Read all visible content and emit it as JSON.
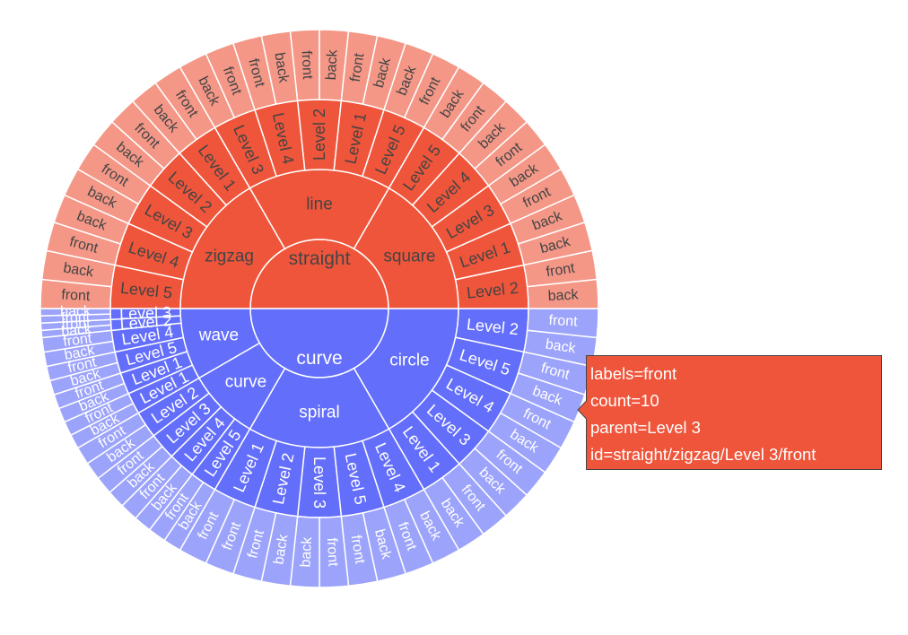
{
  "chart_data": {
    "type": "sunburst",
    "colors": {
      "curve": "#636efa",
      "straight": "#ef553b",
      "ring3_curve": "#9ca3fb",
      "ring3_straight": "#f49787",
      "separator": "#ffffff",
      "label_dark": "#444444",
      "label_light": "#ffffff"
    },
    "root": [
      {
        "label": "curve",
        "value": 15,
        "children": [
          {
            "label": "circle",
            "value": 5,
            "children": [
              {
                "label": "Level 2",
                "value": 1,
                "children": [
                  {
                    "label": "front",
                    "value": 0.5
                  },
                  {
                    "label": "back",
                    "value": 0.5
                  }
                ]
              },
              {
                "label": "Level 5",
                "value": 1,
                "children": [
                  {
                    "label": "front",
                    "value": 0.5
                  },
                  {
                    "label": "back",
                    "value": 0.5
                  }
                ]
              },
              {
                "label": "Level 4",
                "value": 1,
                "children": [
                  {
                    "label": "front",
                    "value": 0.5
                  },
                  {
                    "label": "back",
                    "value": 0.5
                  }
                ]
              },
              {
                "label": "Level 3",
                "value": 1,
                "children": [
                  {
                    "label": "front",
                    "value": 0.5
                  },
                  {
                    "label": "back",
                    "value": 0.5
                  }
                ]
              },
              {
                "label": "Level 1",
                "value": 1,
                "children": [
                  {
                    "label": "front",
                    "value": 0.5
                  },
                  {
                    "label": "back",
                    "value": 0.5
                  }
                ]
              }
            ]
          },
          {
            "label": "spiral",
            "value": 5,
            "children": [
              {
                "label": "Level 4",
                "value": 1,
                "children": [
                  {
                    "label": "back",
                    "value": 0.5
                  },
                  {
                    "label": "front",
                    "value": 0.5
                  }
                ]
              },
              {
                "label": "Level 5",
                "value": 1,
                "children": [
                  {
                    "label": "back",
                    "value": 0.5
                  },
                  {
                    "label": "front",
                    "value": 0.5
                  }
                ]
              },
              {
                "label": "Level 3",
                "value": 1,
                "children": [
                  {
                    "label": "front",
                    "value": 0.5
                  },
                  {
                    "label": "back",
                    "value": 0.5
                  }
                ]
              },
              {
                "label": "Level 2",
                "value": 1,
                "children": [
                  {
                    "label": "back",
                    "value": 0.5
                  },
                  {
                    "label": "front",
                    "value": 0.5
                  }
                ]
              },
              {
                "label": "Level 1",
                "value": 1,
                "children": [
                  {
                    "label": "front",
                    "value": 0.5
                  },
                  {
                    "label": "front",
                    "value": 0.5
                  }
                ]
              }
            ]
          },
          {
            "label": "curve",
            "value": 2.5,
            "children": [
              {
                "label": "Level 5",
                "value": 0.625,
                "children": [
                  {
                    "label": "back",
                    "value": 0.3125
                  },
                  {
                    "label": "front",
                    "value": 0.3125
                  }
                ]
              },
              {
                "label": "Level 4",
                "value": 0.625,
                "children": [
                  {
                    "label": "back",
                    "value": 0.3125
                  },
                  {
                    "label": "front",
                    "value": 0.3125
                  }
                ]
              },
              {
                "label": "Level 3",
                "value": 0.625,
                "children": [
                  {
                    "label": "back",
                    "value": 0.3125
                  },
                  {
                    "label": "front",
                    "value": 0.3125
                  }
                ]
              },
              {
                "label": "Level 2",
                "value": 0.625,
                "children": [
                  {
                    "label": "back",
                    "value": 0.3125
                  },
                  {
                    "label": "front",
                    "value": 0.3125
                  }
                ]
              }
            ]
          },
          {
            "label": "wave",
            "value": 2.5,
            "children": [
              {
                "label": "Level 1",
                "value": 0.5,
                "children": [
                  {
                    "label": "back",
                    "value": 0.25
                  },
                  {
                    "label": "front",
                    "value": 0.25
                  }
                ]
              },
              {
                "label": "Level 1",
                "value": 0.5,
                "children": [
                  {
                    "label": "back",
                    "value": 0.25
                  },
                  {
                    "label": "front",
                    "value": 0.25
                  }
                ]
              },
              {
                "label": "Level 5",
                "value": 0.5,
                "children": [
                  {
                    "label": "back",
                    "value": 0.25
                  },
                  {
                    "label": "front",
                    "value": 0.25
                  }
                ]
              },
              {
                "label": "Level 4",
                "value": 0.5,
                "children": [
                  {
                    "label": "back",
                    "value": 0.25
                  },
                  {
                    "label": "front",
                    "value": 0.25
                  }
                ]
              },
              {
                "label": "Level 2",
                "value": 0.25,
                "children": [
                  {
                    "label": "back",
                    "value": 0.125
                  },
                  {
                    "label": "front",
                    "value": 0.125
                  }
                ]
              },
              {
                "label": "Level 3",
                "value": 0.25,
                "children": [
                  {
                    "label": "front",
                    "value": 0.125
                  },
                  {
                    "label": "back",
                    "value": 0.125
                  }
                ]
              }
            ]
          }
        ]
      },
      {
        "label": "straight",
        "value": 15,
        "children": [
          {
            "label": "zigzag",
            "value": 5,
            "children": [
              {
                "label": "Level 5",
                "value": 1,
                "children": [
                  {
                    "label": "front",
                    "value": 0.5
                  },
                  {
                    "label": "back",
                    "value": 0.5
                  }
                ]
              },
              {
                "label": "Level 4",
                "value": 1,
                "children": [
                  {
                    "label": "front",
                    "value": 0.5
                  },
                  {
                    "label": "back",
                    "value": 0.5
                  }
                ]
              },
              {
                "label": "Level 3",
                "value": 1,
                "children": [
                  {
                    "label": "back",
                    "value": 0.5
                  },
                  {
                    "label": "front",
                    "value": 0.5
                  }
                ]
              },
              {
                "label": "Level 2",
                "value": 1,
                "children": [
                  {
                    "label": "back",
                    "value": 0.5
                  },
                  {
                    "label": "front",
                    "value": 0.5
                  }
                ]
              },
              {
                "label": "Level 1",
                "value": 1,
                "children": [
                  {
                    "label": "back",
                    "value": 0.5
                  },
                  {
                    "label": "front",
                    "value": 0.5
                  }
                ]
              }
            ]
          },
          {
            "label": "line",
            "value": 5,
            "children": [
              {
                "label": "Level 3",
                "value": 1,
                "children": [
                  {
                    "label": "back",
                    "value": 0.5
                  },
                  {
                    "label": "front",
                    "value": 0.5
                  }
                ]
              },
              {
                "label": "Level 4",
                "value": 1,
                "children": [
                  {
                    "label": "front",
                    "value": 0.5
                  },
                  {
                    "label": "back",
                    "value": 0.5
                  }
                ]
              },
              {
                "label": "Level 2",
                "value": 1,
                "children": [
                  {
                    "label": "front",
                    "value": 0.5
                  },
                  {
                    "label": "back",
                    "value": 0.5
                  }
                ]
              },
              {
                "label": "Level 1",
                "value": 1,
                "children": [
                  {
                    "label": "front",
                    "value": 0.5
                  },
                  {
                    "label": "back",
                    "value": 0.5
                  }
                ]
              },
              {
                "label": "Level 5",
                "value": 1,
                "children": [
                  {
                    "label": "back",
                    "value": 0.5
                  },
                  {
                    "label": "front",
                    "value": 0.5
                  }
                ]
              }
            ]
          },
          {
            "label": "square",
            "value": 5,
            "children": [
              {
                "label": "Level 5",
                "value": 1,
                "children": [
                  {
                    "label": "back",
                    "value": 0.5
                  },
                  {
                    "label": "front",
                    "value": 0.5
                  }
                ]
              },
              {
                "label": "Level 4",
                "value": 1,
                "children": [
                  {
                    "label": "back",
                    "value": 0.5
                  },
                  {
                    "label": "front",
                    "value": 0.5
                  }
                ]
              },
              {
                "label": "Level 3",
                "value": 1,
                "children": [
                  {
                    "label": "back",
                    "value": 0.5
                  },
                  {
                    "label": "front",
                    "value": 0.5
                  }
                ]
              },
              {
                "label": "Level 1",
                "value": 1,
                "children": [
                  {
                    "label": "back",
                    "value": 0.5
                  },
                  {
                    "label": "back",
                    "value": 0.5
                  }
                ]
              },
              {
                "label": "Level 2",
                "value": 1,
                "children": [
                  {
                    "label": "front",
                    "value": 0.5
                  },
                  {
                    "label": "back",
                    "value": 0.5
                  }
                ]
              }
            ]
          }
        ]
      }
    ]
  },
  "tooltip": {
    "lines": [
      "labels=front",
      "count=10",
      "parent=Level 3",
      "id=straight/zigzag/Level 3/front"
    ]
  }
}
